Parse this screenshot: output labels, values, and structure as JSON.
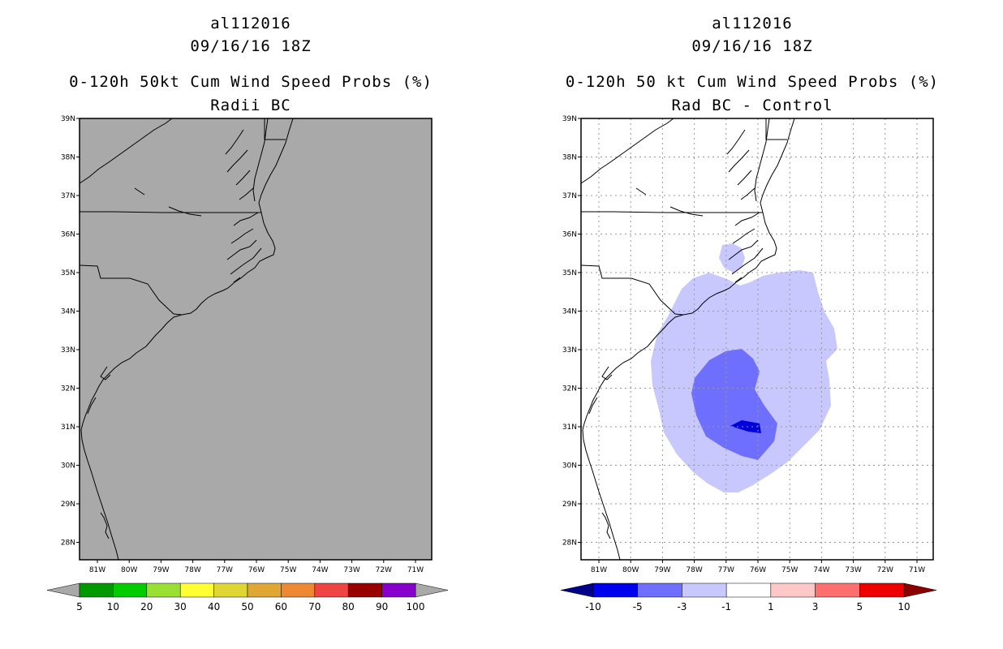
{
  "left": {
    "storm_id": "al112016",
    "datetime": "09/16/16 18Z",
    "title": "0-120h 50kt Cum Wind Speed Probs (%)",
    "subtitle": "Radii BC",
    "background_color": "#a9a9a9",
    "lat_labels": [
      "39N",
      "38N",
      "37N",
      "36N",
      "35N",
      "34N",
      "33N",
      "32N",
      "31N",
      "30N",
      "29N",
      "28N"
    ],
    "lon_labels": [
      "81W",
      "80W",
      "79W",
      "78W",
      "77W",
      "76W",
      "75W",
      "74W",
      "73W",
      "72W",
      "71W"
    ],
    "colorbar": {
      "labels": [
        "5",
        "10",
        "20",
        "30",
        "40",
        "50",
        "60",
        "70",
        "80",
        "90",
        "100"
      ],
      "colors": [
        "#009900",
        "#00cc00",
        "#99e033",
        "#ffff33",
        "#e0d633",
        "#e0a833",
        "#ee8833",
        "#ee4444",
        "#990000",
        "#8800cc"
      ],
      "under_color": "#a9a9a9",
      "over_color": "#a9a9a9"
    }
  },
  "right": {
    "storm_id": "al112016",
    "datetime": "09/16/16 18Z",
    "title": "0-120h 50 kt Cum Wind Speed Probs (%)",
    "subtitle": "Rad BC - Control",
    "lat_labels": [
      "39N",
      "38N",
      "37N",
      "36N",
      "35N",
      "34N",
      "33N",
      "32N",
      "31N",
      "30N",
      "29N",
      "28N"
    ],
    "lon_labels": [
      "81W",
      "80W",
      "79W",
      "78W",
      "77W",
      "76W",
      "75W",
      "74W",
      "73W",
      "72W",
      "71W"
    ],
    "colorbar": {
      "labels": [
        "-10",
        "-5",
        "-3",
        "-1",
        "1",
        "3",
        "5",
        "10"
      ],
      "colors": [
        "#0000ee",
        "#6f6fff",
        "#c8c8ff",
        "#ffffff",
        "#ffc8c8",
        "#ff6f6f",
        "#ee0000"
      ],
      "under_color": "#00008b",
      "over_color": "#8b0000"
    },
    "contour_colors": {
      "light": "#c8c8ff",
      "medium": "#6f6fff",
      "dark": "#0000dd"
    }
  }
}
